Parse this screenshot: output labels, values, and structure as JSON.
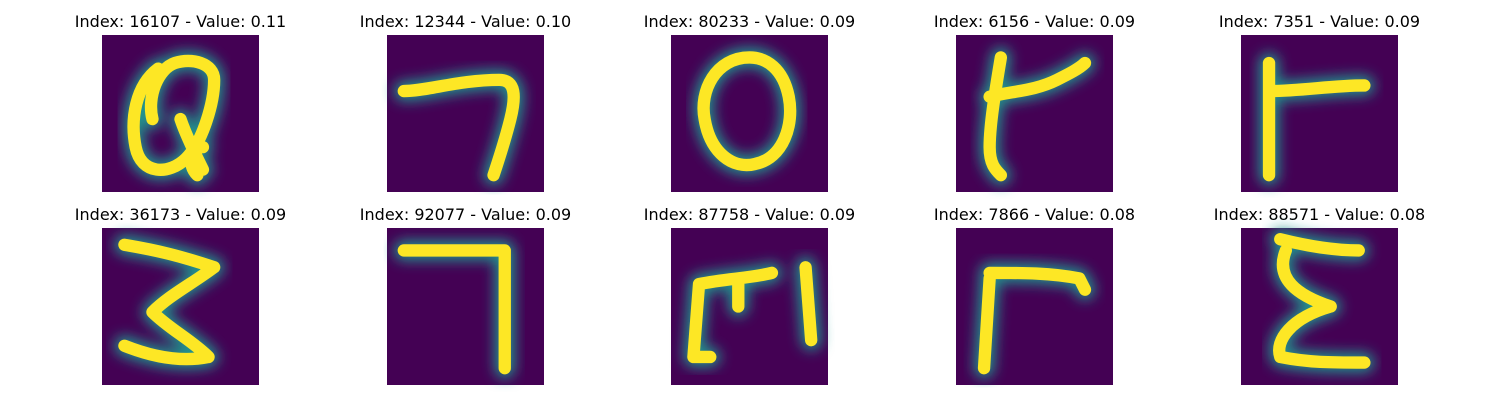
{
  "chart_data": {
    "type": "image_grid",
    "panels": [
      {
        "title": "Index: 16107 - Value: 0.11",
        "glyph": "Q"
      },
      {
        "title": "Index: 12344 - Value: 0.10",
        "glyph": "7"
      },
      {
        "title": "Index: 80233 - Value: 0.09",
        "glyph": "O"
      },
      {
        "title": "Index: 6156 - Value: 0.09",
        "glyph": "t"
      },
      {
        "title": "Index: 7351 - Value: 0.09",
        "glyph": "F-like"
      },
      {
        "title": "Index: 36173 - Value: 0.09",
        "glyph": "3"
      },
      {
        "title": "Index: 92077 - Value: 0.09",
        "glyph": "7"
      },
      {
        "title": "Index: 87758 - Value: 0.09",
        "glyph": "m"
      },
      {
        "title": "Index: 7866 - Value: 0.08",
        "glyph": "r"
      },
      {
        "title": "Index: 88571 - Value: 0.08",
        "glyph": "3"
      }
    ],
    "rows": 2,
    "cols": 5,
    "colormap": [
      "#440154",
      "#21918c",
      "#fde725"
    ]
  }
}
